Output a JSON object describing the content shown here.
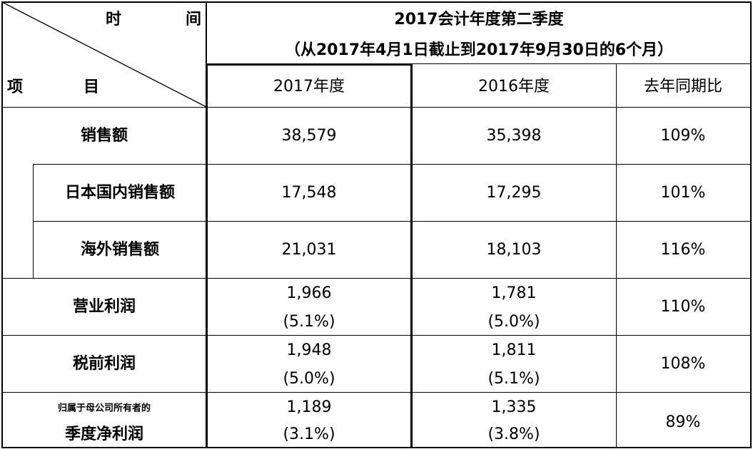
{
  "header": {
    "time_label_1": "时",
    "time_label_2": "间",
    "item_label_1": "项",
    "item_label_2": "目",
    "period_title": "2017会计年度第二季度",
    "period_range": "（从2017年4月1日截止到2017年9月30日的6个月）",
    "col_2017": "2017年度",
    "col_2016": "2016年度",
    "col_ratio": "去年同期比"
  },
  "rows": [
    {
      "label": "销售额",
      "v2017": "38,579",
      "v2016": "35,398",
      "ratio": "109%"
    },
    {
      "label": "日本国内销售额",
      "v2017": "17,548",
      "v2016": "17,295",
      "ratio": "101%"
    },
    {
      "label": "海外销售额",
      "v2017": "21,031",
      "v2016": "18,103",
      "ratio": "116%"
    },
    {
      "label": "营业利润",
      "v2017": "1,966",
      "v2017_pct": "(5.1%)",
      "v2016": "1,781",
      "v2016_pct": "(5.0%)",
      "ratio": "110%"
    },
    {
      "label": "税前利润",
      "v2017": "1,948",
      "v2017_pct": "(5.0%)",
      "v2016": "1,811",
      "v2016_pct": "(5.1%)",
      "ratio": "108%"
    },
    {
      "label_small": "归属于母公司所有者的",
      "label": "季度净利润",
      "v2017": "1,189",
      "v2017_pct": "(3.1%)",
      "v2016": "1,335",
      "v2016_pct": "(3.8%)",
      "ratio": "89%"
    }
  ]
}
